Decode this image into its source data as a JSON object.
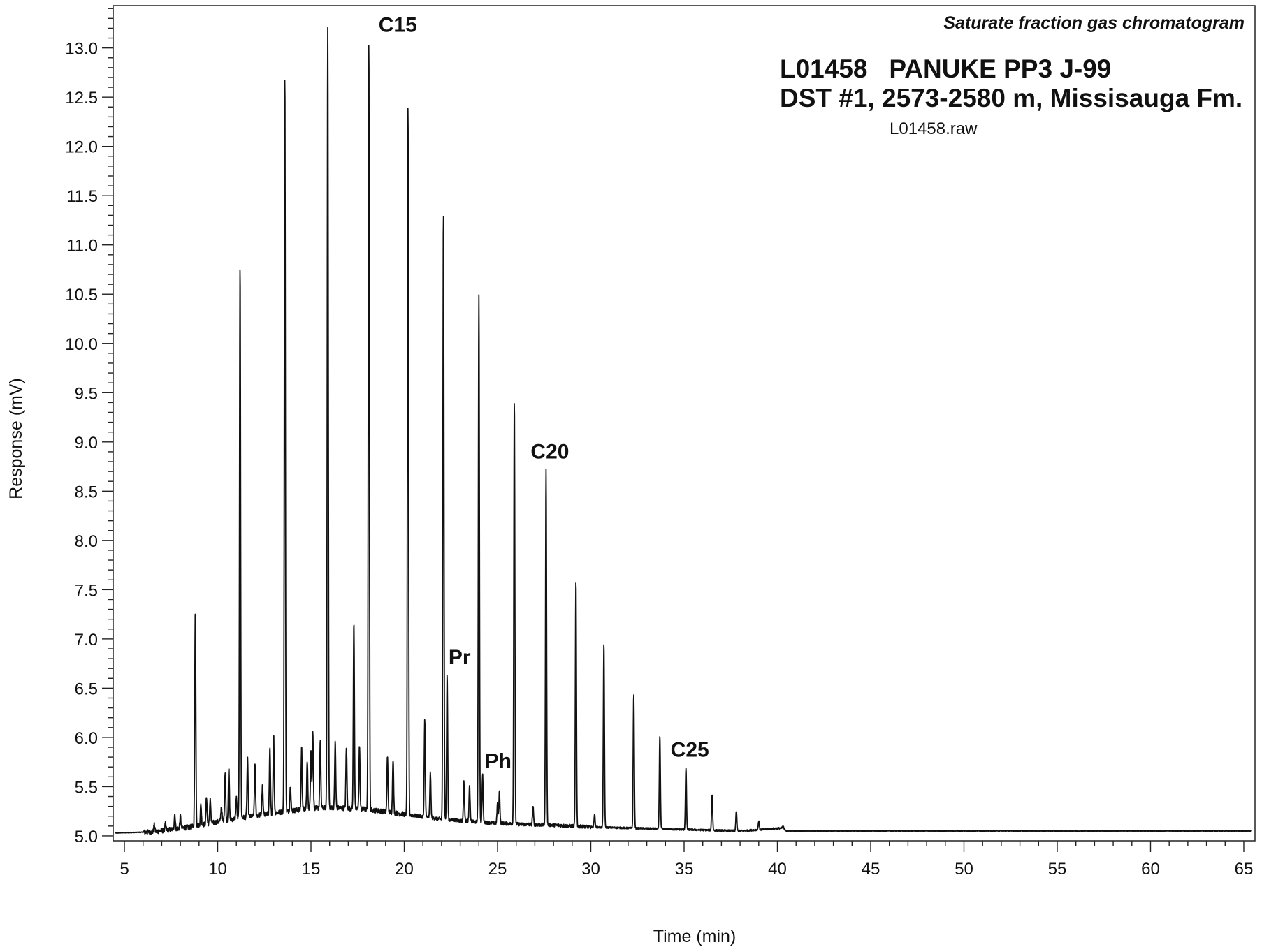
{
  "chart_data": {
    "type": "line",
    "title": "Saturate fraction gas chromatogram",
    "sample_line_1": "L01458   PANUKE PP3 J-99",
    "sample_line_2": "DST #1, 2573-2580 m, Missisauga Fm.",
    "file_name": "L01458.raw",
    "xlabel": "Time (min)",
    "ylabel": "Response (mV)",
    "xlim": [
      4.4,
      65.6
    ],
    "ylim": [
      4.95,
      13.43
    ],
    "x_ticks": [
      "5",
      "10",
      "15",
      "20",
      "25",
      "30",
      "35",
      "40",
      "45",
      "50",
      "55",
      "60",
      "65"
    ],
    "y_ticks": [
      "5.0",
      "5.5",
      "6.0",
      "6.5",
      "7.0",
      "7.5",
      "8.0",
      "8.5",
      "9.0",
      "9.5",
      "10.0",
      "10.5",
      "11.0",
      "11.5",
      "12.0",
      "12.5",
      "13.0"
    ],
    "baseline": 5.03,
    "series": [
      {
        "values": [
          [
            4.5,
            5.03
          ],
          [
            6.5,
            5.04
          ],
          [
            8.5,
            5.09
          ],
          [
            10.5,
            5.16
          ],
          [
            12.5,
            5.22
          ],
          [
            15.0,
            5.28
          ],
          [
            16.0,
            5.29
          ],
          [
            18.0,
            5.27
          ],
          [
            20.0,
            5.22
          ],
          [
            22.0,
            5.17
          ],
          [
            24.0,
            5.14
          ],
          [
            26.0,
            5.12
          ],
          [
            28.0,
            5.11
          ],
          [
            30.0,
            5.09
          ],
          [
            32.0,
            5.08
          ],
          [
            34.0,
            5.07
          ],
          [
            36.0,
            5.06
          ],
          [
            38.0,
            5.05
          ],
          [
            40.3,
            5.08
          ],
          [
            40.5,
            5.05
          ],
          [
            45.0,
            5.05
          ],
          [
            55.0,
            5.05
          ],
          [
            65.4,
            5.05
          ]
        ],
        "major_peaks": [
          [
            6.6,
            5.11
          ],
          [
            7.2,
            5.12
          ],
          [
            7.7,
            5.22
          ],
          [
            8.0,
            5.2
          ],
          [
            8.8,
            7.29
          ],
          [
            9.1,
            5.32
          ],
          [
            9.4,
            5.4
          ],
          [
            9.6,
            5.38
          ],
          [
            10.2,
            5.3
          ],
          [
            10.4,
            5.65
          ],
          [
            10.6,
            5.68
          ],
          [
            11.0,
            5.4
          ],
          [
            11.2,
            10.82
          ],
          [
            11.6,
            5.78
          ],
          [
            12.0,
            5.72
          ],
          [
            12.4,
            5.5
          ],
          [
            12.8,
            5.88
          ],
          [
            13.0,
            6.03
          ],
          [
            13.6,
            12.77
          ],
          [
            13.9,
            5.52
          ],
          [
            14.5,
            5.9
          ],
          [
            14.8,
            5.75
          ],
          [
            15.0,
            5.88
          ],
          [
            15.1,
            6.06
          ],
          [
            15.5,
            5.97
          ],
          [
            15.9,
            13.22
          ],
          [
            16.3,
            5.95
          ],
          [
            16.9,
            5.9
          ],
          [
            17.3,
            7.18
          ],
          [
            17.6,
            5.92
          ],
          [
            18.1,
            13.12
          ],
          [
            19.1,
            5.82
          ],
          [
            19.4,
            5.79
          ],
          [
            20.2,
            12.44
          ],
          [
            21.1,
            6.18
          ],
          [
            21.4,
            5.64
          ],
          [
            22.1,
            11.34
          ],
          [
            22.3,
            6.63
          ],
          [
            23.2,
            5.55
          ],
          [
            23.5,
            5.5
          ],
          [
            24.0,
            10.49
          ],
          [
            24.2,
            5.62
          ],
          [
            25.0,
            5.33
          ],
          [
            25.1,
            5.45
          ],
          [
            25.9,
            9.44
          ],
          [
            26.9,
            5.3
          ],
          [
            27.6,
            8.72
          ],
          [
            29.2,
            7.59
          ],
          [
            30.2,
            5.22
          ],
          [
            30.7,
            6.95
          ],
          [
            32.3,
            6.44
          ],
          [
            33.7,
            6.02
          ],
          [
            35.1,
            5.69
          ],
          [
            36.5,
            5.42
          ],
          [
            37.8,
            5.25
          ],
          [
            39.0,
            5.15
          ],
          [
            40.3,
            5.1
          ]
        ]
      }
    ],
    "annotations": [
      {
        "label": "C15",
        "x": 18.1,
        "y": 13.12
      },
      {
        "label": "Pr",
        "x": 22.3,
        "y": 6.63
      },
      {
        "label": "Ph",
        "x": 24.2,
        "y": 5.62
      },
      {
        "label": "C20",
        "x": 27.6,
        "y": 8.72
      },
      {
        "label": "C25",
        "x": 35.1,
        "y": 5.69
      }
    ]
  }
}
